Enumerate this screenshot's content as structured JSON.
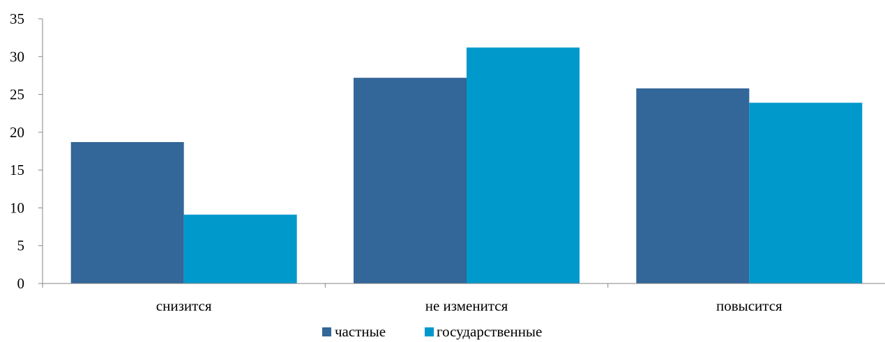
{
  "chart_data": {
    "type": "bar",
    "categories": [
      "снизится",
      "не изменится",
      "повысится"
    ],
    "series": [
      {
        "name": "частные",
        "values": [
          18.7,
          27.2,
          25.8
        ],
        "color": "#336699"
      },
      {
        "name": "государственные",
        "values": [
          9.1,
          31.2,
          23.9
        ],
        "color": "#0099cc"
      }
    ],
    "ylim": [
      0,
      35
    ],
    "yticks": [
      0,
      5,
      10,
      15,
      20,
      25,
      30,
      35
    ],
    "grid": false,
    "legend_position": "bottom"
  }
}
